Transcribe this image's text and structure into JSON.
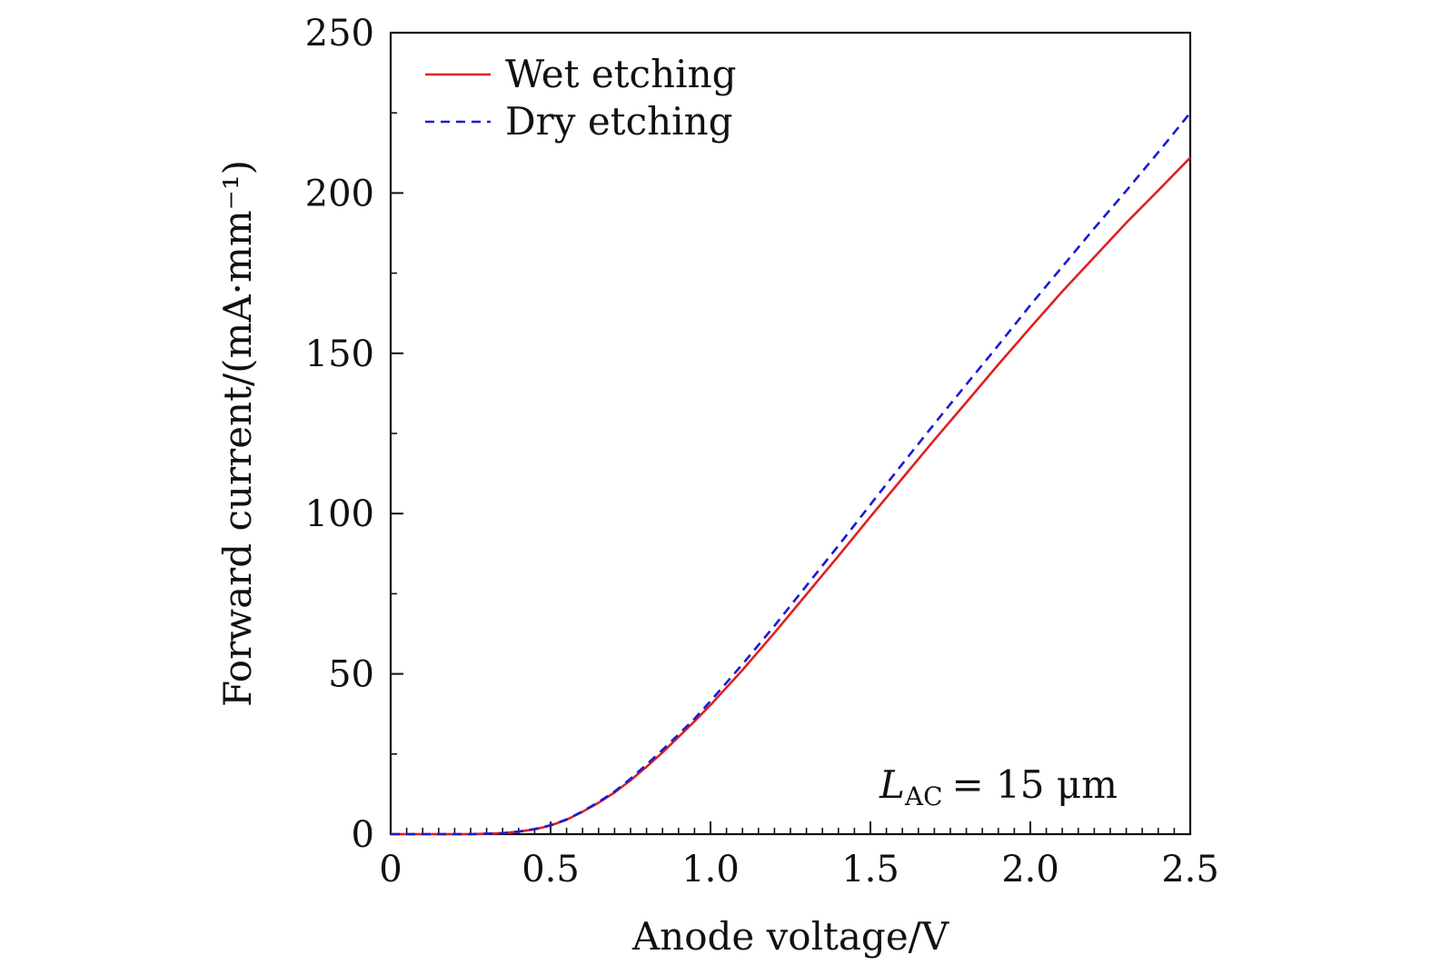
{
  "chart_data": {
    "type": "line",
    "title": "",
    "xlabel": "Anode voltage/V",
    "ylabel": "Forward current/(mA·mm⁻¹)",
    "xlim": [
      0,
      2.5
    ],
    "ylim": [
      0,
      250
    ],
    "xticks": [
      0,
      0.5,
      1.0,
      1.5,
      2.0,
      2.5
    ],
    "xtick_labels": [
      "0",
      "0.5",
      "1.0",
      "1.5",
      "2.0",
      "2.5"
    ],
    "yticks": [
      0,
      50,
      100,
      150,
      200,
      250
    ],
    "ytick_labels": [
      "0",
      "50",
      "100",
      "150",
      "200",
      "250"
    ],
    "grid": false,
    "legend_position": "top-left",
    "annotation": {
      "symbol": "L",
      "subscript": "AC",
      "text": "= 15 μm"
    },
    "series": [
      {
        "name": "Wet etching",
        "color": "#e02020",
        "style": "solid",
        "x": [
          0,
          0.25,
          0.35,
          0.4,
          0.45,
          0.5,
          0.55,
          0.6,
          0.65,
          0.7,
          0.75,
          0.8,
          0.85,
          0.9,
          0.95,
          1.0,
          1.1,
          1.2,
          1.3,
          1.4,
          1.5,
          1.6,
          1.7,
          1.8,
          1.9,
          2.0,
          2.1,
          2.2,
          2.3,
          2.4,
          2.5
        ],
        "values": [
          0,
          0,
          0.3,
          0.8,
          1.5,
          2.7,
          4.5,
          7.0,
          9.8,
          13.0,
          16.8,
          21.0,
          25.5,
          30.3,
          35.2,
          40.3,
          51.2,
          62.8,
          74.8,
          86.8,
          99.0,
          111.0,
          123.0,
          134.7,
          146.5,
          158.0,
          169.3,
          180.0,
          190.7,
          200.8,
          211.0
        ]
      },
      {
        "name": "Dry etching",
        "color": "#1a1ad8",
        "style": "dashed",
        "x": [
          0,
          0.25,
          0.35,
          0.4,
          0.45,
          0.5,
          0.55,
          0.6,
          0.65,
          0.7,
          0.75,
          0.8,
          0.85,
          0.9,
          0.95,
          1.0,
          1.1,
          1.2,
          1.3,
          1.4,
          1.5,
          1.6,
          1.7,
          1.8,
          1.9,
          2.0,
          2.1,
          2.2,
          2.3,
          2.4,
          2.5
        ],
        "values": [
          0,
          0,
          0.3,
          0.8,
          1.6,
          2.8,
          4.6,
          7.1,
          10.0,
          13.3,
          17.3,
          21.7,
          26.3,
          31.1,
          36.0,
          41.5,
          53.0,
          65.0,
          77.5,
          90.0,
          102.8,
          115.5,
          128.0,
          140.3,
          152.5,
          165.0,
          177.0,
          189.0,
          200.7,
          212.7,
          225.0
        ]
      }
    ]
  }
}
